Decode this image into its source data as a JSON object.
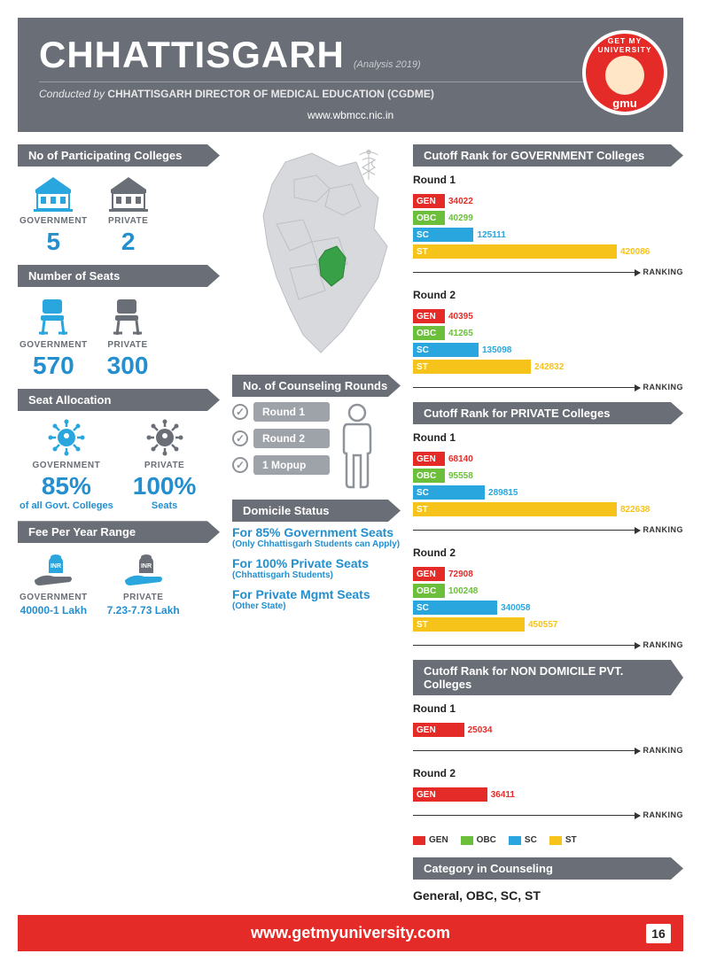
{
  "colors": {
    "gen": "#e52b27",
    "obc": "#6bbf3a",
    "sc": "#2aa6df",
    "st": "#f6c31a",
    "accent": "#238fcf",
    "banner": "#6a6e76",
    "header": "#6a6e76"
  },
  "header": {
    "title": "CHHATTISGARH",
    "analysis": "(Analysis 2019)",
    "conducted_prefix": "Conducted by",
    "conducted_body": "CHHATTISGARH DIRECTOR OF MEDICAL EDUCATION (CGDME)",
    "website": "www.wbmcc.nic.in",
    "logo_top": "GET MY UNIVERSITY",
    "logo_gmu": "gmu"
  },
  "participating": {
    "title": "No of Participating Colleges",
    "gov_label": "GOVERNMENT",
    "gov_value": "5",
    "pvt_label": "PRIVATE",
    "pvt_value": "2"
  },
  "seats": {
    "title": "Number of Seats",
    "gov_label": "GOVERNMENT",
    "gov_value": "570",
    "pvt_label": "PRIVATE",
    "pvt_value": "300"
  },
  "allocation": {
    "title": "Seat Allocation",
    "gov_label": "GOVERNMENT",
    "gov_value": "85%",
    "gov_sub": "of all Govt. Colleges",
    "pvt_label": "PRIVATE",
    "pvt_value": "100%",
    "pvt_sub": "Seats"
  },
  "fee": {
    "title": "Fee Per Year Range",
    "gov_label": "GOVERNMENT",
    "gov_value": "40000-1 Lakh",
    "pvt_label": "PRIVATE",
    "pvt_value": "7.23-7.73 Lakh"
  },
  "counseling": {
    "title": "No. of Counseling Rounds",
    "r1": "Round 1",
    "r2": "Round 2",
    "r3": "1 Mopup"
  },
  "domicile": {
    "title": "Domicile Status",
    "a_title": "For 85% Government Seats",
    "a_sub": "(Only Chhattisgarh Students can Apply)",
    "b_title": "For 100% Private Seats",
    "b_sub": "(Chhattisgarh Students)",
    "c_title": "For Private Mgmt Seats",
    "c_sub": "(Other State)"
  },
  "charts": {
    "axis": "RANKING",
    "round1": "Round 1",
    "round2": "Round 2",
    "cat": {
      "gen": "GEN",
      "obc": "OBC",
      "sc": "SC",
      "st": "ST"
    },
    "gov": {
      "title": "Cutoff Rank for GOVERNMENT Colleges",
      "r1": {
        "gen": 34022,
        "obc": 40299,
        "sc": 125111,
        "st": 420086,
        "max": 420086
      },
      "r2": {
        "gen": 40395,
        "obc": 41265,
        "sc": 135098,
        "st": 242832,
        "max": 420086
      }
    },
    "pvt": {
      "title": "Cutoff Rank for PRIVATE Colleges",
      "r1": {
        "gen": 68140,
        "obc": 95558,
        "sc": 289815,
        "st": 822638,
        "max": 822638
      },
      "r2": {
        "gen": 72908,
        "obc": 100248,
        "sc": 340058,
        "st": 450557,
        "max": 822638
      }
    },
    "nondom": {
      "title": "Cutoff Rank for NON DOMICILE PVT. Colleges",
      "r1": {
        "gen": 25034,
        "max": 100000
      },
      "r2": {
        "gen": 36411,
        "max": 100000
      }
    }
  },
  "legend": {
    "gen": "GEN",
    "obc": "OBC",
    "sc": "SC",
    "st": "ST"
  },
  "category": {
    "title": "Category in Counseling",
    "text": "General, OBC, SC, ST"
  },
  "footer": {
    "url": "www.getmyuniversity.com",
    "page": "16"
  }
}
